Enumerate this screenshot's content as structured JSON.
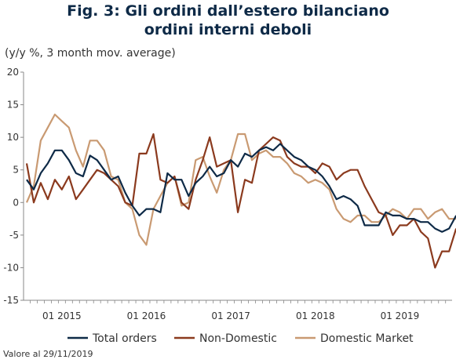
{
  "title_line1": "Fig. 3: Gli ordini dall’estero bilanciano",
  "title_line2": "ordini interni deboli",
  "subtitle": "(y/y %, 3 month mov. average)",
  "footnote": "Valore al 29/11/2019",
  "colors": {
    "total": "#0e2a47",
    "nondomestic": "#8b3a1e",
    "domestic": "#c99a72",
    "axis": "#888888"
  },
  "chart_data": {
    "type": "line",
    "ylim": [
      -15,
      20
    ],
    "yticks": [
      20,
      15,
      10,
      5,
      0,
      -5,
      -10,
      -15
    ],
    "xtick_labels": [
      "01 2015",
      "01 2016",
      "01 2017",
      "01 2018",
      "01 2019"
    ],
    "legend_position": "bottom",
    "series": [
      {
        "name": "Total orders",
        "values": [
          3.5,
          2.0,
          4.5,
          6.0,
          8.0,
          8.0,
          6.5,
          4.5,
          4.0,
          7.2,
          6.5,
          5.0,
          3.5,
          4.0,
          1.5,
          -0.5,
          -2.0,
          -1.0,
          -1.0,
          -1.5,
          4.5,
          3.5,
          3.5,
          1.0,
          3.0,
          4.0,
          5.5,
          4.0,
          4.5,
          6.5,
          5.5,
          7.5,
          7.0,
          8.0,
          8.5,
          8.0,
          9.0,
          8.0,
          7.0,
          6.5,
          5.5,
          5.0,
          4.0,
          2.5,
          0.5,
          1.0,
          0.5,
          -0.5,
          -3.5,
          -3.5,
          -3.5,
          -1.5,
          -2.0,
          -2.0,
          -2.5,
          -2.5,
          -3.0,
          -3.0,
          -4.0,
          -4.5,
          -4.0,
          -2.0
        ]
      },
      {
        "name": "Non-Domestic",
        "values": [
          6.0,
          0.0,
          3.0,
          0.5,
          3.5,
          2.0,
          4.0,
          0.5,
          2.0,
          3.5,
          5.0,
          4.5,
          3.5,
          2.5,
          0.0,
          -0.5,
          7.5,
          7.5,
          10.5,
          3.5,
          3.0,
          4.0,
          0.0,
          -1.0,
          3.5,
          6.5,
          10.0,
          5.5,
          6.0,
          6.5,
          -1.5,
          3.5,
          3.0,
          8.0,
          9.0,
          10.0,
          9.5,
          7.0,
          6.0,
          5.5,
          5.5,
          4.5,
          6.0,
          5.5,
          3.5,
          4.5,
          5.0,
          5.0,
          2.5,
          0.5,
          -1.5,
          -2.0,
          -5.0,
          -3.5,
          -3.5,
          -2.5,
          -4.5,
          -5.5,
          -10.0,
          -7.5,
          -7.5,
          -4.0
        ]
      },
      {
        "name": "Domestic Market",
        "values": [
          0.0,
          2.5,
          9.5,
          11.5,
          13.5,
          12.5,
          11.5,
          8.0,
          5.5,
          9.5,
          9.5,
          8.0,
          4.0,
          3.5,
          0.0,
          -1.0,
          -5.0,
          -6.5,
          -1.0,
          1.0,
          3.0,
          4.0,
          -0.5,
          0.0,
          6.5,
          7.0,
          4.0,
          1.5,
          5.0,
          6.5,
          10.5,
          10.5,
          6.5,
          7.5,
          8.0,
          7.0,
          7.0,
          6.0,
          4.5,
          4.0,
          3.0,
          3.5,
          3.0,
          2.0,
          -1.0,
          -2.5,
          -3.0,
          -2.0,
          -2.0,
          -3.0,
          -3.0,
          -2.0,
          -1.0,
          -1.5,
          -2.5,
          -1.0,
          -1.0,
          -2.5,
          -1.5,
          -1.0,
          -2.5,
          -2.5
        ]
      }
    ]
  }
}
